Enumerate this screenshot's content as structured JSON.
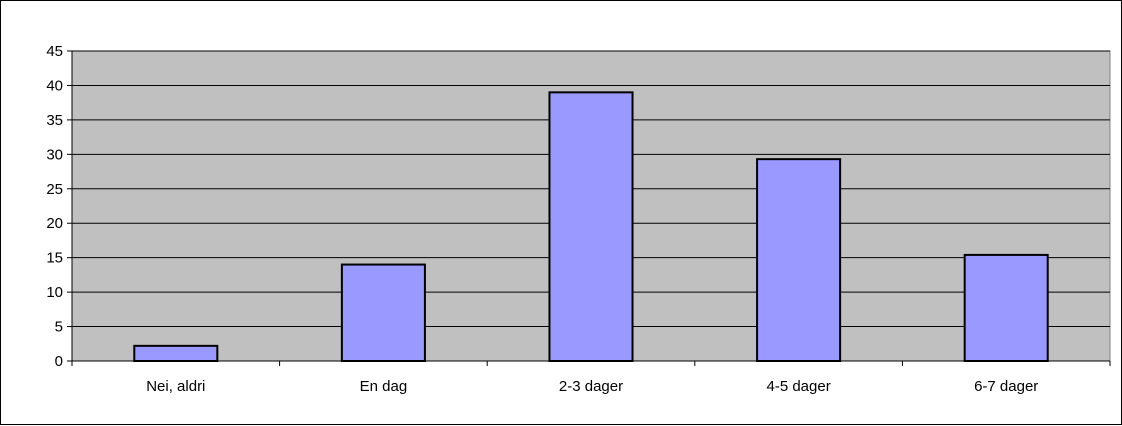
{
  "chart_data": {
    "type": "bar",
    "categories": [
      "Nei, aldri",
      "En dag",
      "2-3 dager",
      "4-5 dager",
      "6-7 dager"
    ],
    "values": [
      2.2,
      14,
      39,
      29.3,
      15.4
    ],
    "title": "",
    "xlabel": "",
    "ylabel": "",
    "ylim": [
      0,
      45
    ],
    "yticks": [
      0,
      5,
      10,
      15,
      20,
      25,
      30,
      35,
      40,
      45
    ],
    "grid": true,
    "legend": "none",
    "colors": {
      "bar_fill": "#9999ff",
      "bar_stroke": "#000000",
      "plot_background": "#c0c0c0",
      "gridline": "#000000"
    }
  }
}
